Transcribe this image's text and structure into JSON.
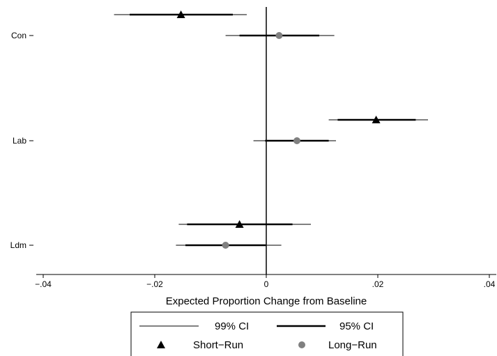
{
  "chart_data": {
    "type": "scatter",
    "subtype": "coefficient-plot",
    "orientation": "horizontal",
    "title": "",
    "xlabel": "Expected Proportion Change from Baseline",
    "ylabel": "",
    "xlim": [
      -0.04,
      0.04
    ],
    "xticks": [
      -0.04,
      -0.02,
      0,
      0.02,
      0.04
    ],
    "xtick_labels": [
      "−.04",
      "−.02",
      "0",
      ".02",
      ".04"
    ],
    "reference_line_x": 0,
    "grid": false,
    "categories": [
      "Con",
      "Lab",
      "Ldm"
    ],
    "series": [
      {
        "name": "Short−Run",
        "marker": "triangle",
        "color": "#000000",
        "points": [
          {
            "category": "Con",
            "value": -0.0153,
            "ci95": [
              -0.0245,
              -0.006
            ],
            "ci99": [
              -0.0273,
              -0.0035
            ]
          },
          {
            "category": "Lab",
            "value": 0.0197,
            "ci95": [
              0.0128,
              0.0268
            ],
            "ci99": [
              0.0112,
              0.029
            ]
          },
          {
            "category": "Ldm",
            "value": -0.0048,
            "ci95": [
              -0.0142,
              0.0047
            ],
            "ci99": [
              -0.0157,
              0.008
            ]
          }
        ]
      },
      {
        "name": "Long−Run",
        "marker": "circle",
        "color": "#808080",
        "points": [
          {
            "category": "Con",
            "value": 0.0023,
            "ci95": [
              -0.0048,
              0.0095
            ],
            "ci99": [
              -0.0073,
              0.0122
            ]
          },
          {
            "category": "Lab",
            "value": 0.0055,
            "ci95": [
              -0.0002,
              0.0112
            ],
            "ci99": [
              -0.0023,
              0.0125
            ]
          },
          {
            "category": "Ldm",
            "value": -0.0073,
            "ci95": [
              -0.0145,
              -0.0001
            ],
            "ci99": [
              -0.0162,
              0.0027
            ]
          }
        ]
      }
    ],
    "legend": {
      "position": "bottom",
      "ci99_label": "99% CI",
      "ci95_label": "95% CI",
      "short_label": "Short−Run",
      "long_label": "Long−Run"
    }
  }
}
